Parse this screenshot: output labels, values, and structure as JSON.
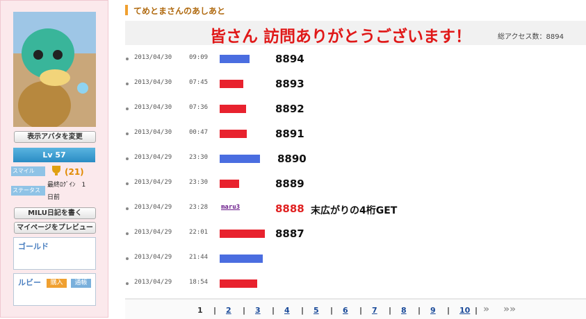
{
  "sidebar": {
    "change_avatar": "表示アバタを変更",
    "level": "Lv 57",
    "smile_label": "スマイル",
    "smile_count": "(21)",
    "status_label": "ステータス",
    "last_login": [
      "最終ﾛｸﾞｲﾝ　1",
      "日前"
    ],
    "diary_button": "MILU日記を書く",
    "preview_button": "マイページをプレビュー",
    "gold_label": "ゴールド",
    "ruby_label": "ルビー",
    "buy_button": "購入",
    "passbook_button": "通帳"
  },
  "header": {
    "title": "てめとまさんのあしあと",
    "banner": "皆さん 訪問ありがとうございます！",
    "access_total": "総アクセス数：8894"
  },
  "visits": [
    {
      "date": "2013/04/30",
      "time": "09:09",
      "cover": "#4a6de0",
      "count": "8894"
    },
    {
      "date": "2013/04/30",
      "time": "07:45",
      "cover": "#e8222e",
      "count": "8893"
    },
    {
      "date": "2013/04/30",
      "time": "07:36",
      "cover": "#e8222e",
      "count": "8892"
    },
    {
      "date": "2013/04/30",
      "time": "00:47",
      "cover": "#e8222e",
      "count": "8891"
    },
    {
      "date": "2013/04/29",
      "time": "23:30",
      "cover": "#4a6de0",
      "count": "8890"
    },
    {
      "date": "2013/04/29",
      "time": "23:30",
      "cover": "#e8222e",
      "count": "8889"
    },
    {
      "date": "2013/04/29",
      "time": "23:28",
      "name": "maru3",
      "count": "8888",
      "note": "末広がりの4桁GET"
    },
    {
      "date": "2013/04/29",
      "time": "22:01",
      "cover": "#e8222e",
      "count": "8887"
    },
    {
      "date": "2013/04/29",
      "time": "21:44",
      "cover": "#4a6de0"
    },
    {
      "date": "2013/04/29",
      "time": "18:54",
      "cover": "#e8222e"
    }
  ],
  "pagination": {
    "current": "1",
    "separator": "|",
    "pages": [
      "2",
      "3",
      "4",
      "5",
      "6",
      "7",
      "8",
      "9",
      "10"
    ],
    "next": "»",
    "last": "»»"
  }
}
